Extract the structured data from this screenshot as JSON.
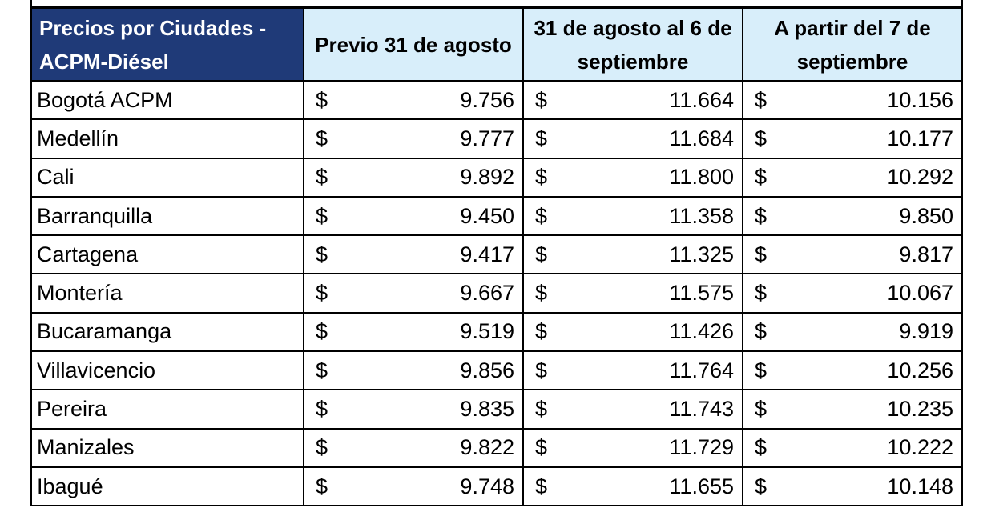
{
  "headers": {
    "city": "Precios por Ciudades - ACPM-Diésel",
    "period_1": "Previo 31 de agosto",
    "period_2": "31 de agosto al 6 de septiembre",
    "period_3": "A partir del 7 de septiembre"
  },
  "currency_symbol": "$",
  "rows": [
    {
      "city": "Bogotá ACPM",
      "prev": "9.756",
      "mid": "11.664",
      "after": "10.156"
    },
    {
      "city": "Medellín",
      "prev": "9.777",
      "mid": "11.684",
      "after": "10.177"
    },
    {
      "city": "Cali",
      "prev": "9.892",
      "mid": "11.800",
      "after": "10.292"
    },
    {
      "city": "Barranquilla",
      "prev": "9.450",
      "mid": "11.358",
      "after": "9.850"
    },
    {
      "city": "Cartagena",
      "prev": "9.417",
      "mid": "11.325",
      "after": "9.817"
    },
    {
      "city": "Montería",
      "prev": "9.667",
      "mid": "11.575",
      "after": "10.067"
    },
    {
      "city": "Bucaramanga",
      "prev": "9.519",
      "mid": "11.426",
      "after": "9.919"
    },
    {
      "city": "Villavicencio",
      "prev": "9.856",
      "mid": "11.764",
      "after": "10.256"
    },
    {
      "city": "Pereira",
      "prev": "9.835",
      "mid": "11.743",
      "after": "10.235"
    },
    {
      "city": "Manizales",
      "prev": "9.822",
      "mid": "11.729",
      "after": "10.222"
    },
    {
      "city": "Ibagué",
      "prev": "9.748",
      "mid": "11.655",
      "after": "10.148"
    }
  ],
  "colors": {
    "header_dark": "#1f3a78",
    "header_light": "#d8eefa",
    "grid": "#000000"
  }
}
